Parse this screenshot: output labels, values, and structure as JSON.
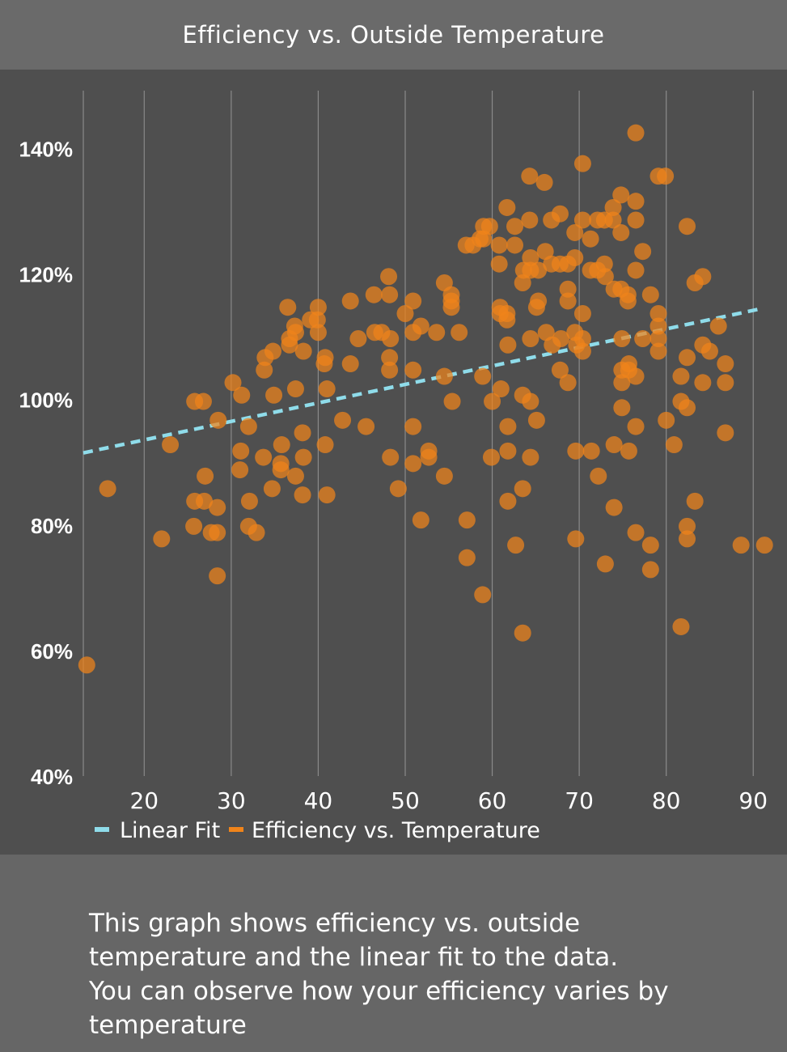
{
  "header": {
    "title": "Efficiency vs. Outside Temperature"
  },
  "caption": {
    "line1": "This graph shows efficiency vs. outside",
    "line2": "temperature and the linear fit to the data.",
    "line3": "You can observe how your efficiency varies by",
    "line4": "temperature"
  },
  "colors": {
    "scatter": "#f0841a",
    "fit": "#8fdcea",
    "panel": "#4f4f4f",
    "grid": "#8a8a8a"
  },
  "chart_data": {
    "type": "scatter",
    "title": "Efficiency vs. Outside Temperature",
    "xlabel": "",
    "ylabel": "",
    "xlim": [
      13,
      91
    ],
    "ylim": [
      40,
      150
    ],
    "x_ticks": [
      20,
      30,
      40,
      50,
      60,
      70,
      80,
      90
    ],
    "y_ticks": [
      40,
      60,
      80,
      100,
      120,
      140
    ],
    "x_tick_labels": [
      "20",
      "30",
      "40",
      "50",
      "60",
      "70",
      "80",
      "90"
    ],
    "y_tick_labels": [
      "40%",
      "60%",
      "80%",
      "100%",
      "120%",
      "140%"
    ],
    "grid": "vertical",
    "legend_position": "bottom-left",
    "legend": [
      "Linear Fit",
      "Efficiency vs. Temperature"
    ],
    "series": [
      {
        "name": "Linear Fit",
        "type": "line",
        "style": "dashed",
        "color": "#8fdcea",
        "x": [
          13,
          91
        ],
        "y": [
          91.5,
          114.5
        ]
      },
      {
        "name": "Efficiency vs. Temperature",
        "type": "scatter",
        "color": "#f0841a",
        "points": [
          [
            13.4,
            57.7
          ],
          [
            15.8,
            85.8
          ],
          [
            22.0,
            77.8
          ],
          [
            23.0,
            92.8
          ],
          [
            25.7,
            79.8
          ],
          [
            25.8,
            83.8
          ],
          [
            25.8,
            99.7
          ],
          [
            26.8,
            99.7
          ],
          [
            26.9,
            83.8
          ],
          [
            27.0,
            87.8
          ],
          [
            27.7,
            78.8
          ],
          [
            28.4,
            71.9
          ],
          [
            28.4,
            82.8
          ],
          [
            28.4,
            78.8
          ],
          [
            28.5,
            96.7
          ],
          [
            30.2,
            102.7
          ],
          [
            31.0,
            88.8
          ],
          [
            31.1,
            91.8
          ],
          [
            31.2,
            100.7
          ],
          [
            32.0,
            95.7
          ],
          [
            32.0,
            79.8
          ],
          [
            32.1,
            83.8
          ],
          [
            32.9,
            78.8
          ],
          [
            33.7,
            90.8
          ],
          [
            33.8,
            104.7
          ],
          [
            33.9,
            106.7
          ],
          [
            34.7,
            85.8
          ],
          [
            34.8,
            107.7
          ],
          [
            34.9,
            100.7
          ],
          [
            35.7,
            88.8
          ],
          [
            35.7,
            89.8
          ],
          [
            35.8,
            92.8
          ],
          [
            36.5,
            114.7
          ],
          [
            36.7,
            108.7
          ],
          [
            36.7,
            109.7
          ],
          [
            37.3,
            111.7
          ],
          [
            37.4,
            110.7
          ],
          [
            37.4,
            101.7
          ],
          [
            37.4,
            87.8
          ],
          [
            38.2,
            84.8
          ],
          [
            38.2,
            94.7
          ],
          [
            38.3,
            90.8
          ],
          [
            38.3,
            107.7
          ],
          [
            39.1,
            112.7
          ],
          [
            39.9,
            112.7
          ],
          [
            40.0,
            110.7
          ],
          [
            40.0,
            114.7
          ],
          [
            40.7,
            105.7
          ],
          [
            40.8,
            106.7
          ],
          [
            40.8,
            92.8
          ],
          [
            41.0,
            84.8
          ],
          [
            41.0,
            101.7
          ],
          [
            42.8,
            96.7
          ],
          [
            43.7,
            105.7
          ],
          [
            43.7,
            115.7
          ],
          [
            44.6,
            109.7
          ],
          [
            45.5,
            95.7
          ],
          [
            46.4,
            116.7
          ],
          [
            46.5,
            110.7
          ],
          [
            47.3,
            110.7
          ],
          [
            48.1,
            119.6
          ],
          [
            48.2,
            116.7
          ],
          [
            48.2,
            106.7
          ],
          [
            48.2,
            104.7
          ],
          [
            48.3,
            90.8
          ],
          [
            48.3,
            109.7
          ],
          [
            49.2,
            85.8
          ],
          [
            50.0,
            113.7
          ],
          [
            50.9,
            115.7
          ],
          [
            50.9,
            104.7
          ],
          [
            50.9,
            95.7
          ],
          [
            50.9,
            89.8
          ],
          [
            50.9,
            110.7
          ],
          [
            51.8,
            111.7
          ],
          [
            51.8,
            80.8
          ],
          [
            52.7,
            91.8
          ],
          [
            52.7,
            90.8
          ],
          [
            53.6,
            110.7
          ],
          [
            54.5,
            103.7
          ],
          [
            54.5,
            87.8
          ],
          [
            54.5,
            118.6
          ],
          [
            55.3,
            116.7
          ],
          [
            55.3,
            114.7
          ],
          [
            55.3,
            115.7
          ],
          [
            55.4,
            99.7
          ],
          [
            56.2,
            110.7
          ],
          [
            57.0,
            124.6
          ],
          [
            57.1,
            80.8
          ],
          [
            57.1,
            74.8
          ],
          [
            57.8,
            124.6
          ],
          [
            58.6,
            125.6
          ],
          [
            58.9,
            68.9
          ],
          [
            58.9,
            103.7
          ],
          [
            59.0,
            125.6
          ],
          [
            59.0,
            127.6
          ],
          [
            59.7,
            127.6
          ],
          [
            59.9,
            90.8
          ],
          [
            60.0,
            99.7
          ],
          [
            60.8,
            124.6
          ],
          [
            60.8,
            121.6
          ],
          [
            60.9,
            114.7
          ],
          [
            60.9,
            113.7
          ],
          [
            61.0,
            101.7
          ],
          [
            61.7,
            113.7
          ],
          [
            61.7,
            130.6
          ],
          [
            61.7,
            112.7
          ],
          [
            61.8,
            108.7
          ],
          [
            61.8,
            95.7
          ],
          [
            61.8,
            91.8
          ],
          [
            61.8,
            83.8
          ],
          [
            62.6,
            127.6
          ],
          [
            62.6,
            124.6
          ],
          [
            62.7,
            76.8
          ],
          [
            63.5,
            62.8
          ],
          [
            63.5,
            85.8
          ],
          [
            63.5,
            100.7
          ],
          [
            63.5,
            118.6
          ],
          [
            63.6,
            120.6
          ],
          [
            64.3,
            135.6
          ],
          [
            64.3,
            128.6
          ],
          [
            64.4,
            122.6
          ],
          [
            64.4,
            120.6
          ],
          [
            64.4,
            109.7
          ],
          [
            64.4,
            99.7
          ],
          [
            64.4,
            90.8
          ],
          [
            65.1,
            114.7
          ],
          [
            65.1,
            96.7
          ],
          [
            65.3,
            115.7
          ],
          [
            65.3,
            120.6
          ],
          [
            66.0,
            134.6
          ],
          [
            66.1,
            123.6
          ],
          [
            66.2,
            110.7
          ],
          [
            66.8,
            128.6
          ],
          [
            66.8,
            121.6
          ],
          [
            66.9,
            108.7
          ],
          [
            67.8,
            129.6
          ],
          [
            67.8,
            121.6
          ],
          [
            67.8,
            104.7
          ],
          [
            67.9,
            109.7
          ],
          [
            68.7,
            102.7
          ],
          [
            68.7,
            115.7
          ],
          [
            68.7,
            117.6
          ],
          [
            68.7,
            121.6
          ],
          [
            69.5,
            126.6
          ],
          [
            69.5,
            110.7
          ],
          [
            69.5,
            122.6
          ],
          [
            69.6,
            91.8
          ],
          [
            69.6,
            77.8
          ],
          [
            69.7,
            108.7
          ],
          [
            70.4,
            137.6
          ],
          [
            70.4,
            128.6
          ],
          [
            70.4,
            113.7
          ],
          [
            70.4,
            109.7
          ],
          [
            70.4,
            107.7
          ],
          [
            71.3,
            120.6
          ],
          [
            71.3,
            125.6
          ],
          [
            71.4,
            91.8
          ],
          [
            72.1,
            120.6
          ],
          [
            72.1,
            128.6
          ],
          [
            72.2,
            87.8
          ],
          [
            72.9,
            128.6
          ],
          [
            72.9,
            121.6
          ],
          [
            73.0,
            119.6
          ],
          [
            73.0,
            73.8
          ],
          [
            73.9,
            130.6
          ],
          [
            73.9,
            128.6
          ],
          [
            74.0,
            92.8
          ],
          [
            74.0,
            82.8
          ],
          [
            74.0,
            117.6
          ],
          [
            74.8,
            132.6
          ],
          [
            74.8,
            126.6
          ],
          [
            74.8,
            117.6
          ],
          [
            74.9,
            109.7
          ],
          [
            74.9,
            104.7
          ],
          [
            74.9,
            102.7
          ],
          [
            74.9,
            98.7
          ],
          [
            75.6,
            116.7
          ],
          [
            75.6,
            115.7
          ],
          [
            75.7,
            105.7
          ],
          [
            75.7,
            104.7
          ],
          [
            75.7,
            91.8
          ],
          [
            76.5,
            142.5
          ],
          [
            76.5,
            131.6
          ],
          [
            76.5,
            128.6
          ],
          [
            76.5,
            120.6
          ],
          [
            76.5,
            103.7
          ],
          [
            76.5,
            95.7
          ],
          [
            76.5,
            78.8
          ],
          [
            77.3,
            123.6
          ],
          [
            77.3,
            109.7
          ],
          [
            78.2,
            116.7
          ],
          [
            78.2,
            76.8
          ],
          [
            78.2,
            72.9
          ],
          [
            79.1,
            135.6
          ],
          [
            79.1,
            113.7
          ],
          [
            79.1,
            111.7
          ],
          [
            79.1,
            109.7
          ],
          [
            79.1,
            107.7
          ],
          [
            79.9,
            135.6
          ],
          [
            80.0,
            96.7
          ],
          [
            80.9,
            92.8
          ],
          [
            81.7,
            103.7
          ],
          [
            81.7,
            99.7
          ],
          [
            81.7,
            63.8
          ],
          [
            82.4,
            127.6
          ],
          [
            82.4,
            106.7
          ],
          [
            82.4,
            98.7
          ],
          [
            82.4,
            79.8
          ],
          [
            82.4,
            77.8
          ],
          [
            83.3,
            118.6
          ],
          [
            83.3,
            83.8
          ],
          [
            84.2,
            119.6
          ],
          [
            84.2,
            108.7
          ],
          [
            84.2,
            102.7
          ],
          [
            85.0,
            107.7
          ],
          [
            86.0,
            111.7
          ],
          [
            86.8,
            105.7
          ],
          [
            86.8,
            102.7
          ],
          [
            86.8,
            94.7
          ],
          [
            88.6,
            76.8
          ],
          [
            91.3,
            76.8
          ]
        ]
      }
    ]
  }
}
